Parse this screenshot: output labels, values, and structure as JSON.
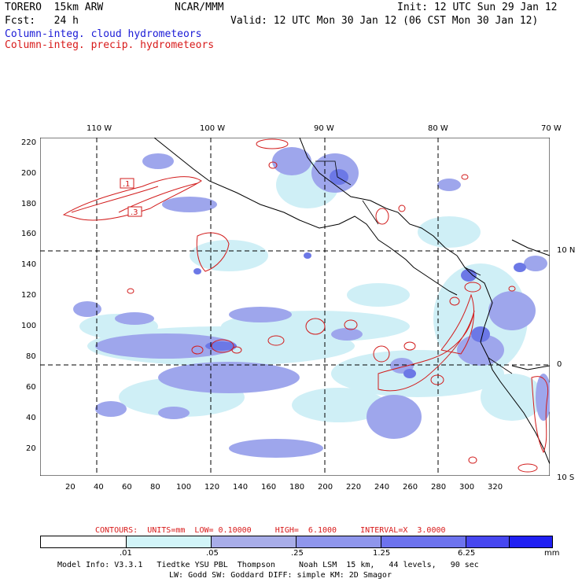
{
  "header": {
    "model": "TORERO  15km ARW",
    "center": "NCAR/MMM",
    "init": "Init: 12 UTC Sun 29 Jan 12",
    "fcst": "Fcst:   24 h",
    "valid": "Valid: 12 UTC Mon 30 Jan 12 (06 CST Mon 30 Jan 12)",
    "field1": "Column-integ. cloud hydrometeors",
    "field2": "Column-integ. precip. hydrometeors"
  },
  "map": {
    "top_lon_labels": [
      "110 W",
      "100 W",
      "90 W",
      "80 W",
      "70 W"
    ],
    "right_lat_labels": [
      "10 N",
      "0",
      "10 S"
    ],
    "left_y_ticks": [
      "220",
      "200",
      "180",
      "160",
      "140",
      "120",
      "100",
      "80",
      "60",
      "40",
      "20"
    ],
    "bottom_x_ticks": [
      "20",
      "40",
      "60",
      "80",
      "100",
      "120",
      "140",
      "160",
      "180",
      "200",
      "220",
      "240",
      "260",
      "280",
      "300",
      "320"
    ],
    "contour_labels": [
      ".1",
      ".3"
    ],
    "colors": {
      "cloud_light": "#cfeff6",
      "cloud_mid": "#9ea6ec",
      "cloud_dark": "#6c78e6",
      "precip": "#d21c1c",
      "land": "#000000"
    }
  },
  "contour_info": "CONTOURS:  UNITS=mm  LOW= 0.10000     HIGH=  6.1000     INTERVAL=X  3.0000",
  "colorbar": {
    "labels": [
      ".01",
      ".05",
      ".25",
      "1.25",
      "6.25"
    ],
    "unit": "mm",
    "colors": [
      "#ffffff",
      "#d2f4f8",
      "#a8ade8",
      "#8f96ec",
      "#6d73ee",
      "#4747f0",
      "#2020f2"
    ]
  },
  "footer": {
    "line1": "Model Info: V3.3.1   Tiedtke YSU PBL  Thompson     Noah LSM  15 km,   44 levels,   90 sec",
    "line2": "LW: Godd SW: Goddard DIFF: simple KM: 2D Smagor"
  }
}
